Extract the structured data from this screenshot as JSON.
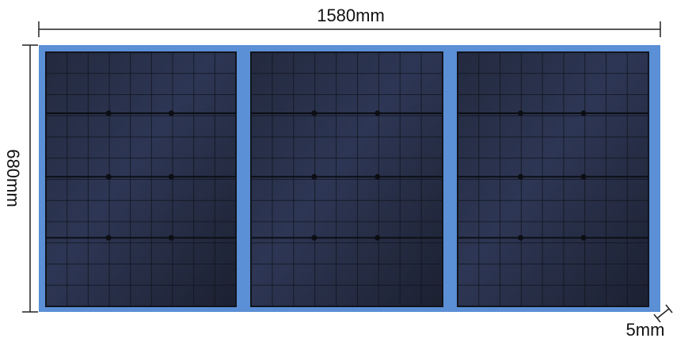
{
  "dimensions": {
    "width_label": "1580mm",
    "height_label": "680mm",
    "thickness_label": "5mm"
  },
  "panel": {
    "module_count": 3,
    "colors": {
      "frame": "#5b8fd6",
      "cell_dark": "#1f2433",
      "cell_mid": "#2b3350",
      "grid_line": "#11141c",
      "dimension_line": "#222222"
    }
  }
}
